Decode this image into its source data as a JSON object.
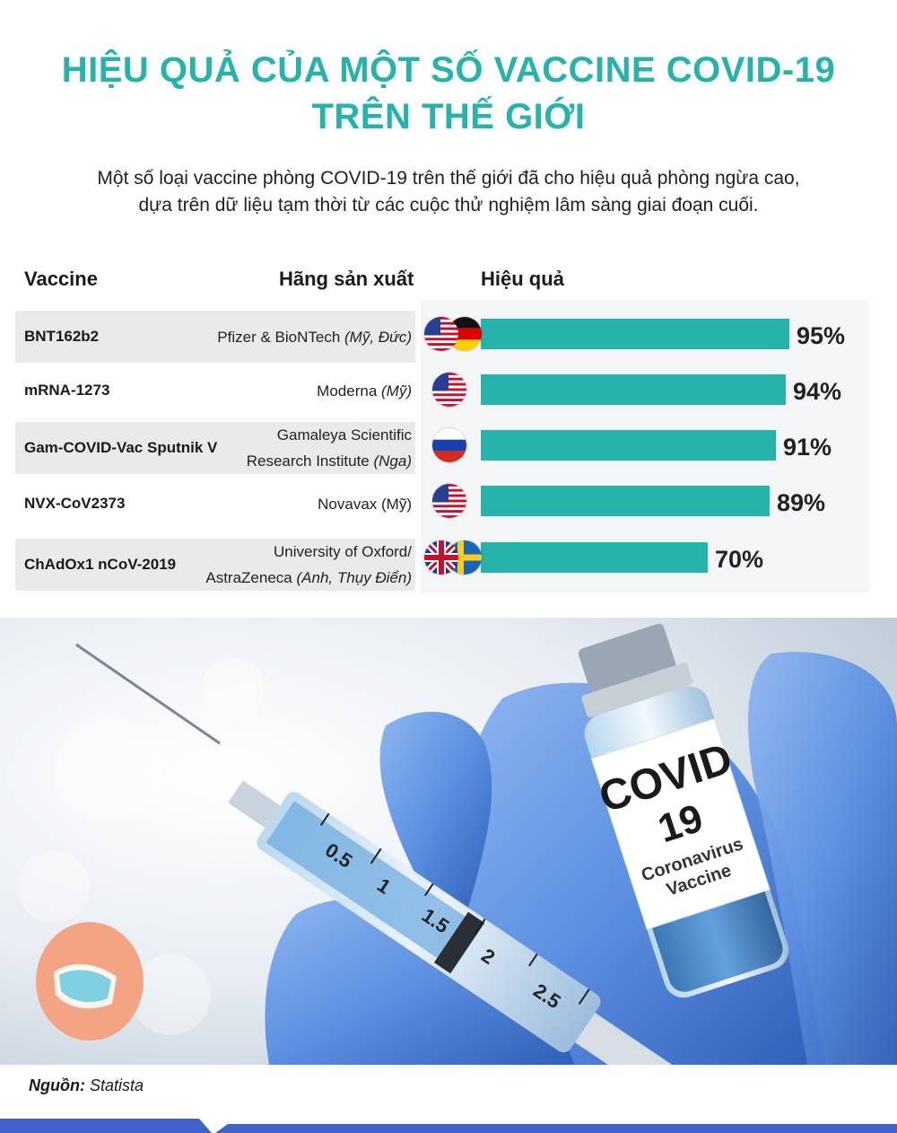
{
  "title_line1": "HIỆU QUẢ CỦA MỘT SỐ VACCINE COVID-19",
  "title_line2": "TRÊN THẾ GIỚI",
  "subtitle_line1": "Một số loại vaccine phòng COVID-19 trên thế giới đã cho hiệu quả phòng ngừa cao,",
  "subtitle_line2": "dựa trên dữ liệu tạm thời từ các cuộc thử nghiệm lâm sàng giai đoạn cuối.",
  "headers": {
    "vaccine": "Vaccine",
    "maker": "Hãng sản xuất",
    "efficacy": "Hiệu quả"
  },
  "rows": [
    {
      "vaccine": "BNT162b2",
      "maker_line1": "Pfizer & BioNTech",
      "maker_italic1": "(Mỹ, Đức)",
      "maker_line2": "",
      "maker_italic2": "",
      "flags": [
        "us-flag",
        "germany-flag"
      ],
      "label": "95%"
    },
    {
      "vaccine": "mRNA-1273",
      "maker_line1": "Moderna",
      "maker_italic1": "(Mỹ)",
      "maker_line2": "",
      "maker_italic2": "",
      "flags": [
        "us-flag"
      ],
      "label": "94%"
    },
    {
      "vaccine": "Gam-COVID-Vac Sputnik V",
      "maker_line1": "Gamaleya Scientific",
      "maker_italic1": "",
      "maker_line2": "Research Institute",
      "maker_italic2": "(Nga)",
      "flags": [
        "russia-flag"
      ],
      "label": "91%"
    },
    {
      "vaccine": "NVX-CoV2373",
      "maker_line1": "Novavax (Mỹ)",
      "maker_italic1": "",
      "maker_line2": "",
      "maker_italic2": "",
      "flags": [
        "us-flag"
      ],
      "label": "89%"
    },
    {
      "vaccine": "ChAdOx1 nCoV-2019",
      "maker_line1": "University of Oxford/",
      "maker_italic1": "",
      "maker_line2": "AstraZeneca",
      "maker_italic2": "(Anh, Thụy Điển)",
      "flags": [
        "uk-flag",
        "sweden-flag"
      ],
      "label": "70%"
    }
  ],
  "chart_data": {
    "type": "bar",
    "orientation": "horizontal",
    "categories": [
      "BNT162b2",
      "mRNA-1273",
      "Gam-COVID-Vac Sputnik V",
      "NVX-CoV2373",
      "ChAdOx1 nCoV-2019"
    ],
    "values": [
      95,
      94,
      91,
      89,
      70
    ],
    "xlim": [
      0,
      100
    ],
    "unit": "%",
    "bar_color": "#26b3ab",
    "grid": false
  },
  "photo_label": {
    "line1": "COVID",
    "line2": "19",
    "line3": "Coronavirus",
    "line4": "Vaccine"
  },
  "syringe_marks": [
    "0.5",
    "1",
    "1.5",
    "2",
    "2.5"
  ],
  "source_label": "Nguồn:",
  "source_value": "Statista",
  "colors": {
    "title": "#26b3ab",
    "bar": "#26b3ab",
    "glove": "#5b8fe0",
    "footer_bar": "#3f63c9"
  }
}
